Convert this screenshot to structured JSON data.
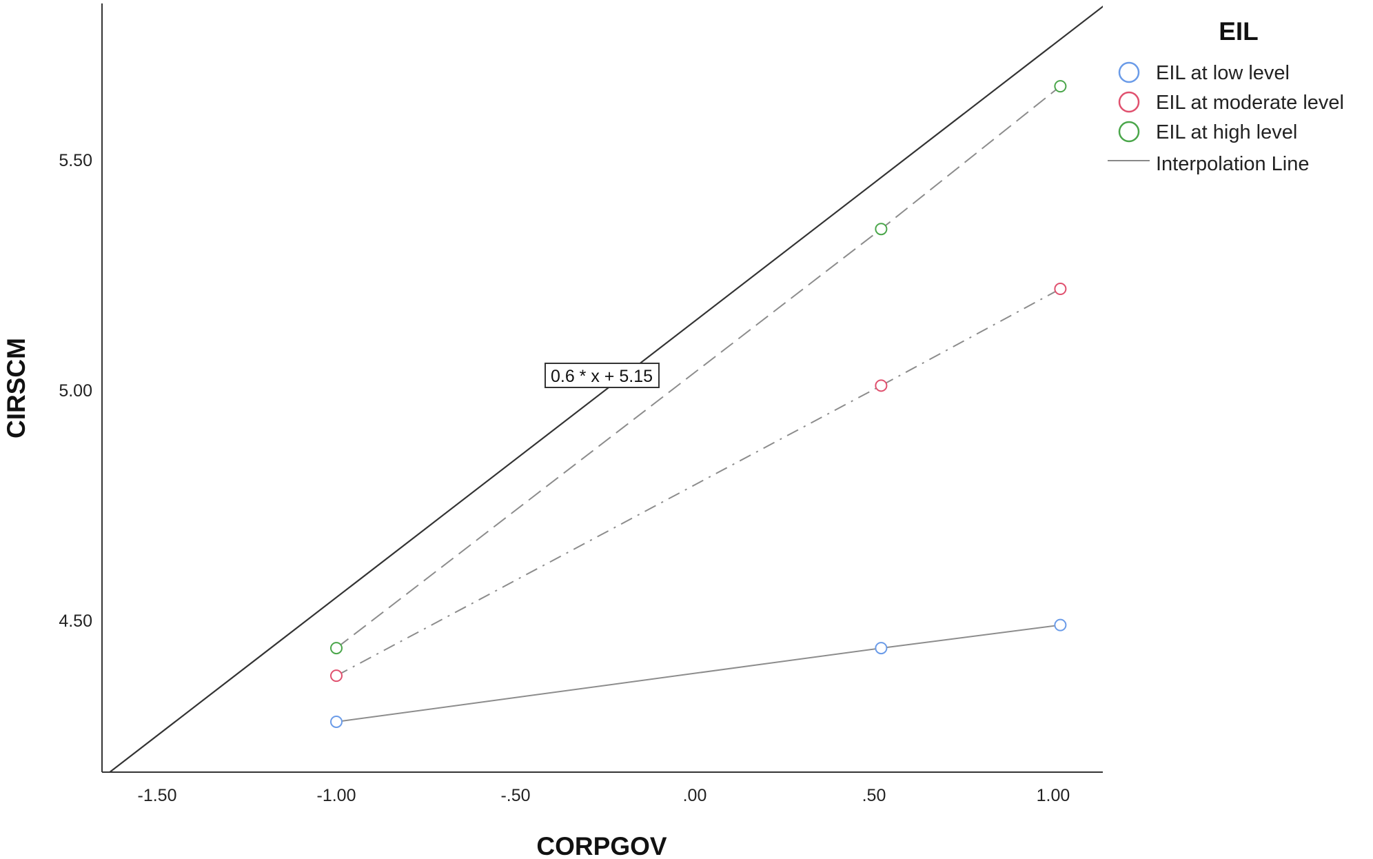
{
  "chart_data": {
    "type": "line",
    "xlabel": "CORPGOV",
    "ylabel": "CIRSCM",
    "xlim": [
      -1.5,
      1.0
    ],
    "ylim": [
      4.17,
      5.84
    ],
    "x_ticks": [
      {
        "value": -1.5,
        "label": "-1.50"
      },
      {
        "value": -1.0,
        "label": "-1.00"
      },
      {
        "value": -0.5,
        "label": "-.50"
      },
      {
        "value": 0.0,
        "label": ".00"
      },
      {
        "value": 0.5,
        "label": ".50"
      },
      {
        "value": 1.0,
        "label": "1.00"
      }
    ],
    "y_ticks": [
      {
        "value": 4.5,
        "label": "4.50"
      },
      {
        "value": 5.0,
        "label": "5.00"
      },
      {
        "value": 5.5,
        "label": "5.50"
      }
    ],
    "x": [
      -1.0,
      0.52,
      1.02
    ],
    "series": [
      {
        "name": "EIL at low level",
        "values": [
          4.28,
          4.44,
          4.49
        ],
        "color": "#6a9be8",
        "line": "solid"
      },
      {
        "name": "EIL at moderate level",
        "values": [
          4.38,
          5.01,
          5.22
        ],
        "color": "#e0506e",
        "line": "dashdot"
      },
      {
        "name": "EIL at high level",
        "values": [
          4.44,
          5.35,
          5.66
        ],
        "color": "#4aa64a",
        "line": "dashed"
      }
    ],
    "fit_line": {
      "label": "0.6 * x + 5.15",
      "slope": 0.6,
      "intercept": 5.15
    },
    "legend": {
      "title": "EIL",
      "position": "top-right",
      "interpolation_label": "Interpolation Line"
    },
    "grid": false
  }
}
